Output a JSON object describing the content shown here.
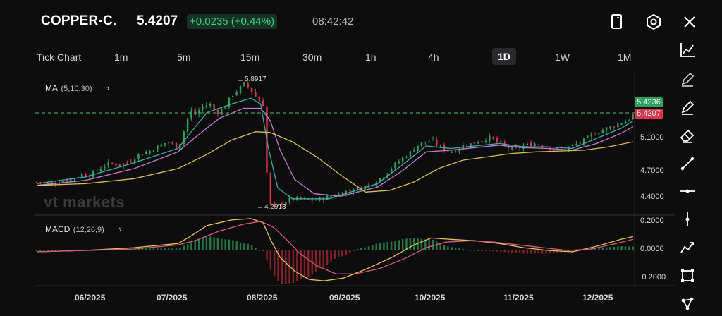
{
  "header": {
    "symbol": "COPPER-C.",
    "price": "5.4207",
    "change": "+0.0235 (+0.44%)",
    "time": "08:42:42",
    "icons": [
      "contract-spec-icon",
      "settings-hexagon-icon",
      "close-icon"
    ]
  },
  "timeframes": {
    "items": [
      "Tick Chart",
      "1m",
      "5m",
      "15m",
      "30m",
      "1h",
      "4h",
      "1D",
      "1W",
      "1M"
    ],
    "active": "1D"
  },
  "main_indicator": {
    "name": "MA",
    "params": "(5,10,30)"
  },
  "sub_indicator": {
    "name": "MACD",
    "params": "(12,26,9)"
  },
  "watermark": "vt markets",
  "price_axis": [
    "5.1000",
    "4.7000",
    "4.4000"
  ],
  "macd_axis": [
    "0.2000",
    "0.0000",
    "−0.2000"
  ],
  "price_tags": {
    "ask": "5.4236",
    "bid": "5.4207"
  },
  "annotations": {
    "high": "5.8917",
    "low": "4.2913"
  },
  "x_axis": [
    "06/2025",
    "07/2025",
    "08/2025",
    "09/2025",
    "10/2025",
    "11/2025",
    "12/2025"
  ],
  "colors": {
    "up": "#26a65b",
    "down": "#e0334a",
    "ma5": "#2fb3a7",
    "ma10": "#c77ad6",
    "ma30": "#d9c24a",
    "macd_line": "#e6c25a",
    "signal_line": "#e0567a"
  },
  "toolbar": [
    "line-chart-icon",
    "pen-icon",
    "pen-active-icon",
    "eraser-icon",
    "trend-line-icon",
    "horizontal-line-icon",
    "vertical-line-icon",
    "polyline-icon",
    "rectangle-icon",
    "node-icon"
  ],
  "chart_data": {
    "type": "candlestick",
    "symbol": "COPPER-C.",
    "timeframe": "1D",
    "x_range": [
      "2025-05",
      "2025-12"
    ],
    "ylim": [
      4.25,
      5.95
    ],
    "price_ticks": [
      5.1,
      4.7,
      4.4
    ],
    "current_bid": 5.4207,
    "current_ask": 5.4236,
    "high": 5.8917,
    "low": 4.2913,
    "close_path": [
      [
        0,
        4.62
      ],
      [
        10,
        4.6
      ],
      [
        20,
        4.63
      ],
      [
        30,
        4.66
      ],
      [
        38,
        4.72
      ],
      [
        44,
        4.7
      ],
      [
        52,
        4.78
      ],
      [
        60,
        4.85
      ],
      [
        68,
        4.82
      ],
      [
        76,
        4.86
      ],
      [
        84,
        4.95
      ],
      [
        92,
        4.98
      ],
      [
        100,
        5.05
      ],
      [
        108,
        5.1
      ],
      [
        116,
        5.02
      ],
      [
        120,
        5.18
      ],
      [
        126,
        5.48
      ],
      [
        130,
        5.42
      ],
      [
        136,
        5.52
      ],
      [
        142,
        5.55
      ],
      [
        148,
        5.45
      ],
      [
        154,
        5.5
      ],
      [
        160,
        5.65
      ],
      [
        166,
        5.72
      ],
      [
        170,
        5.8
      ],
      [
        174,
        5.75
      ],
      [
        178,
        5.68
      ],
      [
        182,
        5.6
      ],
      [
        186,
        5.55
      ],
      [
        188,
        4.95
      ],
      [
        190,
        4.55
      ],
      [
        192,
        4.35
      ],
      [
        196,
        4.32
      ],
      [
        200,
        4.36
      ],
      [
        206,
        4.4
      ],
      [
        212,
        4.42
      ],
      [
        220,
        4.41
      ],
      [
        228,
        4.4
      ],
      [
        236,
        4.43
      ],
      [
        244,
        4.46
      ],
      [
        252,
        4.5
      ],
      [
        260,
        4.53
      ],
      [
        268,
        4.56
      ],
      [
        276,
        4.6
      ],
      [
        284,
        4.68
      ],
      [
        292,
        4.8
      ],
      [
        300,
        4.9
      ],
      [
        306,
        4.96
      ],
      [
        312,
        5.05
      ],
      [
        318,
        5.1
      ],
      [
        324,
        5.12
      ],
      [
        330,
        5.05
      ],
      [
        336,
        5.0
      ],
      [
        342,
        4.98
      ],
      [
        350,
        5.05
      ],
      [
        358,
        5.08
      ],
      [
        366,
        5.12
      ],
      [
        372,
        5.15
      ],
      [
        378,
        5.1
      ],
      [
        384,
        5.05
      ],
      [
        392,
        5.0
      ],
      [
        400,
        5.05
      ],
      [
        408,
        5.08
      ],
      [
        416,
        5.06
      ],
      [
        424,
        5.02
      ],
      [
        432,
        5.0
      ],
      [
        440,
        5.05
      ],
      [
        448,
        5.1
      ],
      [
        456,
        5.18
      ],
      [
        464,
        5.24
      ],
      [
        472,
        5.28
      ],
      [
        480,
        5.33
      ],
      [
        486,
        5.36
      ],
      [
        490,
        5.42
      ]
    ],
    "ma5_path": [
      [
        0,
        4.6
      ],
      [
        40,
        4.68
      ],
      [
        80,
        4.85
      ],
      [
        116,
        5.02
      ],
      [
        126,
        5.2
      ],
      [
        140,
        5.45
      ],
      [
        160,
        5.55
      ],
      [
        176,
        5.62
      ],
      [
        184,
        5.55
      ],
      [
        190,
        5.05
      ],
      [
        198,
        4.55
      ],
      [
        210,
        4.42
      ],
      [
        240,
        4.42
      ],
      [
        280,
        4.6
      ],
      [
        300,
        4.82
      ],
      [
        320,
        5.05
      ],
      [
        340,
        5.02
      ],
      [
        360,
        5.05
      ],
      [
        380,
        5.08
      ],
      [
        400,
        5.04
      ],
      [
        420,
        5.04
      ],
      [
        440,
        5.02
      ],
      [
        460,
        5.14
      ],
      [
        480,
        5.26
      ],
      [
        490,
        5.35
      ]
    ],
    "ma10_path": [
      [
        0,
        4.58
      ],
      [
        40,
        4.64
      ],
      [
        80,
        4.78
      ],
      [
        116,
        4.98
      ],
      [
        130,
        5.15
      ],
      [
        150,
        5.38
      ],
      [
        170,
        5.5
      ],
      [
        184,
        5.5
      ],
      [
        192,
        5.35
      ],
      [
        200,
        5.0
      ],
      [
        212,
        4.65
      ],
      [
        228,
        4.48
      ],
      [
        250,
        4.45
      ],
      [
        280,
        4.56
      ],
      [
        300,
        4.75
      ],
      [
        320,
        4.98
      ],
      [
        340,
        5.0
      ],
      [
        360,
        5.03
      ],
      [
        380,
        5.06
      ],
      [
        400,
        5.03
      ],
      [
        420,
        5.02
      ],
      [
        440,
        5.0
      ],
      [
        460,
        5.08
      ],
      [
        480,
        5.2
      ],
      [
        490,
        5.28
      ]
    ],
    "ma30_path": [
      [
        0,
        4.58
      ],
      [
        40,
        4.6
      ],
      [
        80,
        4.66
      ],
      [
        116,
        4.78
      ],
      [
        140,
        4.95
      ],
      [
        160,
        5.12
      ],
      [
        180,
        5.22
      ],
      [
        192,
        5.21
      ],
      [
        210,
        5.1
      ],
      [
        230,
        4.92
      ],
      [
        250,
        4.7
      ],
      [
        270,
        4.5
      ],
      [
        290,
        4.52
      ],
      [
        310,
        4.62
      ],
      [
        330,
        4.78
      ],
      [
        350,
        4.88
      ],
      [
        370,
        4.92
      ],
      [
        390,
        4.96
      ],
      [
        410,
        4.98
      ],
      [
        430,
        4.99
      ],
      [
        450,
        5.0
      ],
      [
        470,
        5.04
      ],
      [
        490,
        5.1
      ]
    ],
    "macd": {
      "ylim": [
        -0.25,
        0.25
      ],
      "ticks": [
        0.2,
        0.0,
        -0.2
      ],
      "macd_line": [
        [
          0,
          -0.01
        ],
        [
          40,
          0.0
        ],
        [
          80,
          0.02
        ],
        [
          116,
          0.05
        ],
        [
          126,
          0.1
        ],
        [
          140,
          0.18
        ],
        [
          160,
          0.22
        ],
        [
          176,
          0.23
        ],
        [
          186,
          0.2
        ],
        [
          192,
          0.08
        ],
        [
          200,
          -0.05
        ],
        [
          212,
          -0.15
        ],
        [
          224,
          -0.21
        ],
        [
          236,
          -0.22
        ],
        [
          252,
          -0.2
        ],
        [
          272,
          -0.13
        ],
        [
          292,
          -0.05
        ],
        [
          310,
          0.04
        ],
        [
          324,
          0.09
        ],
        [
          340,
          0.08
        ],
        [
          360,
          0.07
        ],
        [
          380,
          0.05
        ],
        [
          400,
          0.02
        ],
        [
          420,
          0.0
        ],
        [
          440,
          -0.01
        ],
        [
          460,
          0.03
        ],
        [
          480,
          0.08
        ],
        [
          490,
          0.1
        ]
      ],
      "signal_line": [
        [
          0,
          -0.01
        ],
        [
          40,
          0.0
        ],
        [
          80,
          0.01
        ],
        [
          116,
          0.04
        ],
        [
          130,
          0.07
        ],
        [
          150,
          0.14
        ],
        [
          170,
          0.19
        ],
        [
          184,
          0.21
        ],
        [
          194,
          0.17
        ],
        [
          204,
          0.09
        ],
        [
          216,
          -0.02
        ],
        [
          230,
          -0.11
        ],
        [
          246,
          -0.17
        ],
        [
          262,
          -0.17
        ],
        [
          282,
          -0.13
        ],
        [
          302,
          -0.06
        ],
        [
          320,
          0.02
        ],
        [
          336,
          0.06
        ],
        [
          356,
          0.07
        ],
        [
          376,
          0.06
        ],
        [
          396,
          0.04
        ],
        [
          416,
          0.02
        ],
        [
          436,
          0.0
        ],
        [
          456,
          0.01
        ],
        [
          476,
          0.05
        ],
        [
          490,
          0.08
        ]
      ]
    }
  }
}
